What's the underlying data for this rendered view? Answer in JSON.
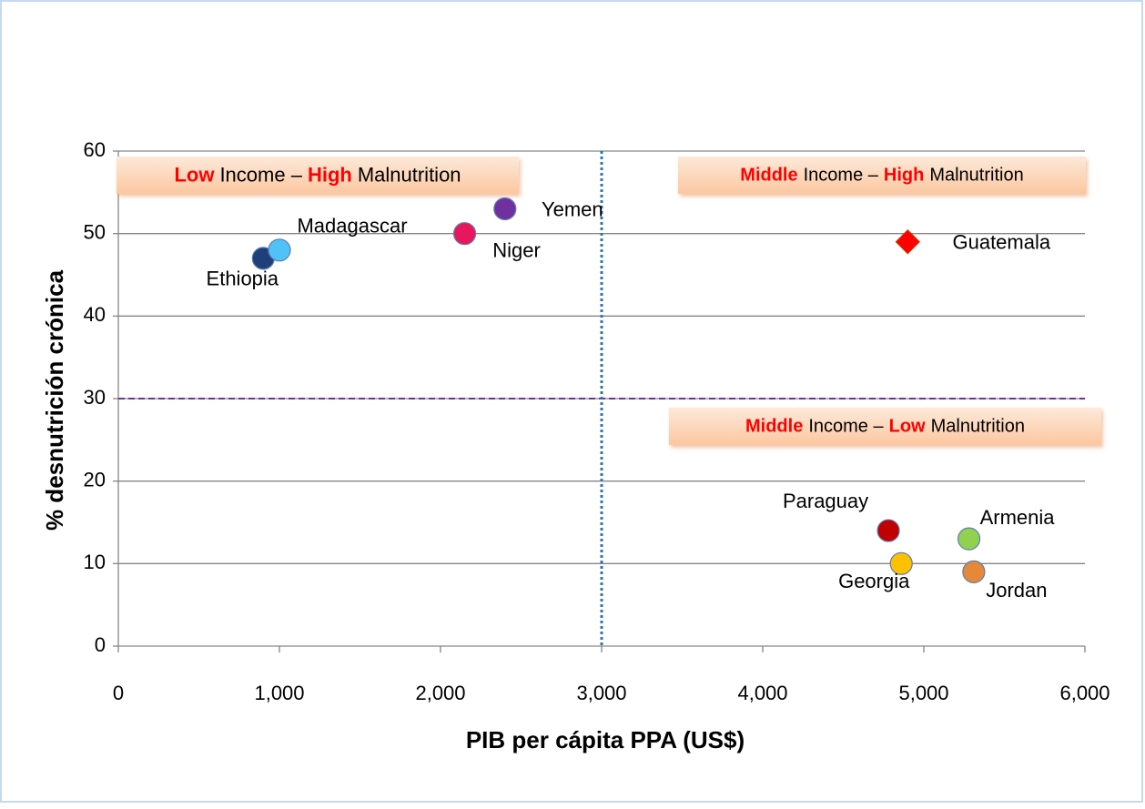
{
  "chart_data": {
    "type": "scatter",
    "x_label": "PIB per cápita PPA (US$)",
    "y_label": "% desnutrición crónica",
    "labels": [
      "Ethiopia",
      "Madagascar",
      "Niger",
      "Yemen",
      "Guatemala",
      "Paraguay",
      "Georgia",
      "Armenia",
      "Jordan"
    ],
    "x": [
      900,
      1000,
      2150,
      2400,
      4900,
      4780,
      4860,
      5280,
      5310
    ],
    "y": [
      47,
      48,
      50,
      53,
      49,
      14,
      10,
      13,
      9
    ],
    "colors": [
      "#1f3f7a",
      "#4fc3f7",
      "#e8175d",
      "#7030a0",
      "#ff0000",
      "#c00000",
      "#ffc000",
      "#92d050",
      "#e6883a"
    ],
    "markers": [
      "circle",
      "circle",
      "circle",
      "circle",
      "diamond",
      "circle",
      "circle",
      "circle",
      "circle"
    ],
    "xlim": [
      0,
      6000
    ],
    "ylim": [
      0,
      60
    ],
    "xticks": [
      0,
      {
        "value": 1000,
        "label": "1,000"
      },
      {
        "value": 2000,
        "label": "2,000"
      },
      {
        "value": 3000,
        "label": "3,000"
      },
      {
        "value": 4000,
        "label": "4,000"
      },
      {
        "value": 5000,
        "label": "5,000"
      },
      {
        "value": 6000,
        "label": "6,000"
      }
    ],
    "yticks": [
      0,
      10,
      20,
      30,
      40,
      50,
      60
    ],
    "grid": true,
    "reference_lines": [
      {
        "axis": "y",
        "value": 30,
        "color": "#7030a0",
        "style": "dashed"
      },
      {
        "axis": "x",
        "value": 3000,
        "color": "#2e75b6",
        "style": "dotted"
      }
    ],
    "annotations": [
      {
        "parts": [
          {
            "text": "Low",
            "highlight": true
          },
          {
            "text": "Income –"
          },
          {
            "text": "High",
            "highlight": true
          },
          {
            "text": "Malnutrition"
          }
        ]
      },
      {
        "parts": [
          {
            "text": "Middle",
            "highlight": true
          },
          {
            "text": "Income –"
          },
          {
            "text": "High",
            "highlight": true
          },
          {
            "text": "Malnutrition"
          }
        ]
      },
      {
        "parts": [
          {
            "text": "Middle",
            "highlight": true
          },
          {
            "text": "Income –"
          },
          {
            "text": "Low",
            "highlight": true
          },
          {
            "text": "Malnutrition"
          }
        ]
      }
    ]
  }
}
